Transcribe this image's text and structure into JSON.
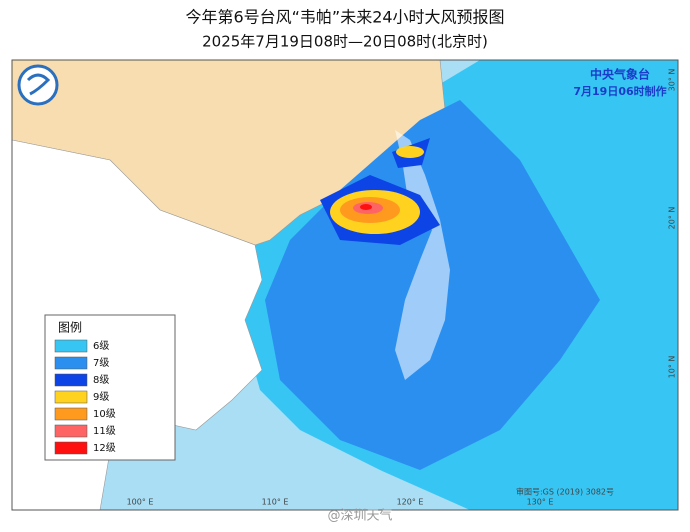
{
  "title": "今年第6号台风“韦帕”未来24小时大风预报图",
  "subtitle": "2025年7月19日08时—20日08时(北京时)",
  "agency": "中央气象台",
  "issued": "7月19日06时制作",
  "legend": {
    "title": "图例",
    "items": [
      {
        "label": "6级",
        "color": "#37c6f4"
      },
      {
        "label": "7级",
        "color": "#2b8ff0"
      },
      {
        "label": "8级",
        "color": "#0c44e6"
      },
      {
        "label": "9级",
        "color": "#ffd21f"
      },
      {
        "label": "10级",
        "color": "#ff9a1f"
      },
      {
        "label": "11级",
        "color": "#ff6464"
      },
      {
        "label": "12级",
        "color": "#ff1010"
      }
    ]
  },
  "axes": {
    "lon": [
      "100° E",
      "110° E",
      "120° E",
      "130° E"
    ],
    "lat": [
      "30° N",
      "20° N",
      "10° N"
    ]
  },
  "map_number": "审图号:GS (2019) 3082号",
  "watermark": "@深圳天气"
}
